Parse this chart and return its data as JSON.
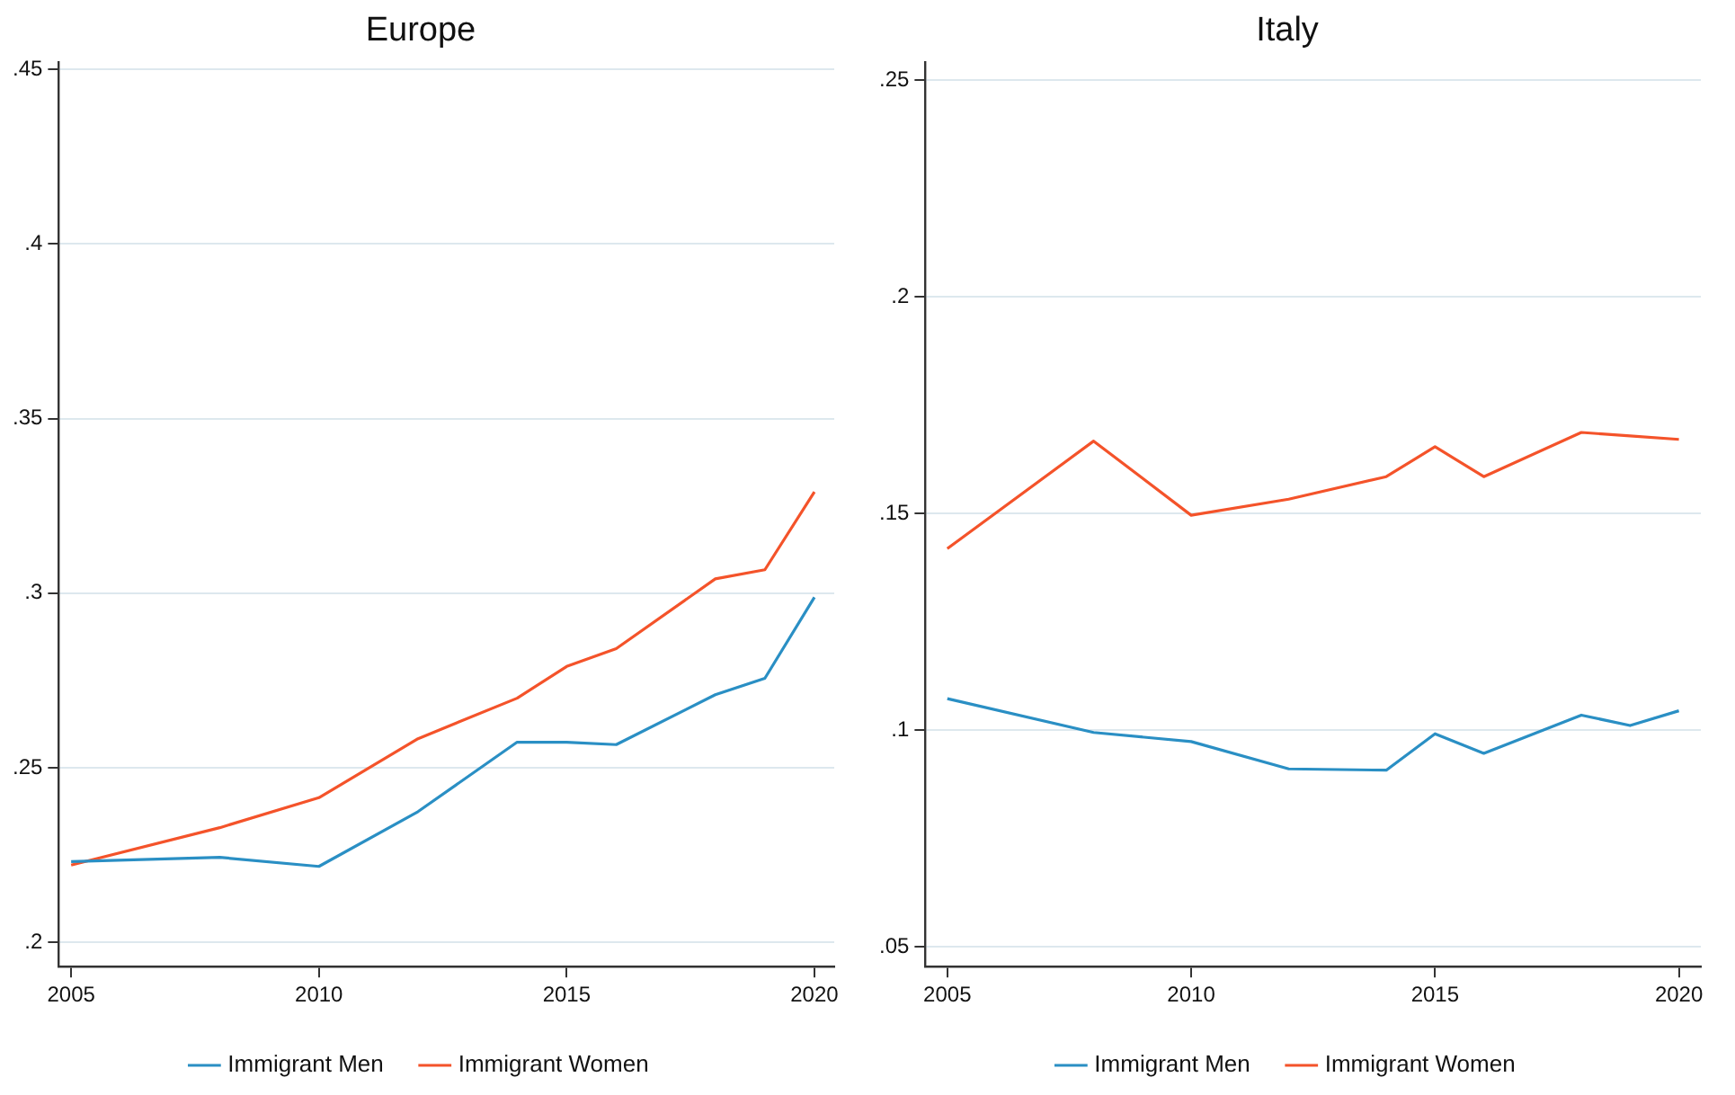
{
  "chart_data": [
    {
      "type": "line",
      "title": "Europe",
      "x": [
        2005,
        2008,
        2010,
        2012,
        2014,
        2015,
        2016,
        2018,
        2019,
        2020
      ],
      "series": [
        {
          "name": "Immigrant Men",
          "color": "#2a8fc4",
          "values": [
            0.2231,
            0.2243,
            0.2217,
            0.2374,
            0.2573,
            0.2573,
            0.2566,
            0.2709,
            0.2756,
            0.2988
          ]
        },
        {
          "name": "Immigrant Women",
          "color": "#f4532a",
          "values": [
            0.2221,
            0.2328,
            0.2414,
            0.2583,
            0.2699,
            0.279,
            0.2841,
            0.3041,
            0.3067,
            0.329
          ]
        }
      ],
      "xlim": [
        2004.75,
        2020.4
      ],
      "xticks": [
        2005,
        2010,
        2015,
        2020
      ],
      "ylim": [
        0.193,
        0.452
      ],
      "yticks": [
        {
          "value": 0.2,
          "label": ".2"
        },
        {
          "value": 0.25,
          "label": ".25"
        },
        {
          "value": 0.3,
          "label": ".3"
        },
        {
          "value": 0.35,
          "label": ".35"
        },
        {
          "value": 0.4,
          "label": ".4"
        },
        {
          "value": 0.45,
          "label": ".45"
        }
      ],
      "grid": "y",
      "legend": "bottom",
      "marker": "none",
      "line_style": "solid"
    },
    {
      "type": "line",
      "title": "Italy",
      "x": [
        2005,
        2008,
        2010,
        2012,
        2014,
        2015,
        2016,
        2018,
        2019,
        2020
      ],
      "series": [
        {
          "name": "Immigrant Men",
          "color": "#2a8fc4",
          "values": [
            0.1073,
            0.0995,
            0.0974,
            0.0911,
            0.0908,
            0.0992,
            0.0947,
            0.1035,
            0.1011,
            0.1045
          ]
        },
        {
          "name": "Immigrant Women",
          "color": "#f4532a",
          "values": [
            0.1419,
            0.1667,
            0.1496,
            0.1533,
            0.1585,
            0.1654,
            0.1585,
            0.1687,
            0.1679,
            0.1671
          ]
        }
      ],
      "xlim": [
        2004.55,
        2020.45
      ],
      "xticks": [
        2005,
        2010,
        2015,
        2020
      ],
      "ylim": [
        0.0455,
        0.254
      ],
      "yticks": [
        {
          "value": 0.05,
          "label": ".05"
        },
        {
          "value": 0.1,
          "label": ".1"
        },
        {
          "value": 0.15,
          "label": ".15"
        },
        {
          "value": 0.2,
          "label": ".2"
        },
        {
          "value": 0.25,
          "label": ".25"
        }
      ],
      "grid": "y",
      "legend": "bottom",
      "marker": "none",
      "line_style": "solid"
    }
  ]
}
